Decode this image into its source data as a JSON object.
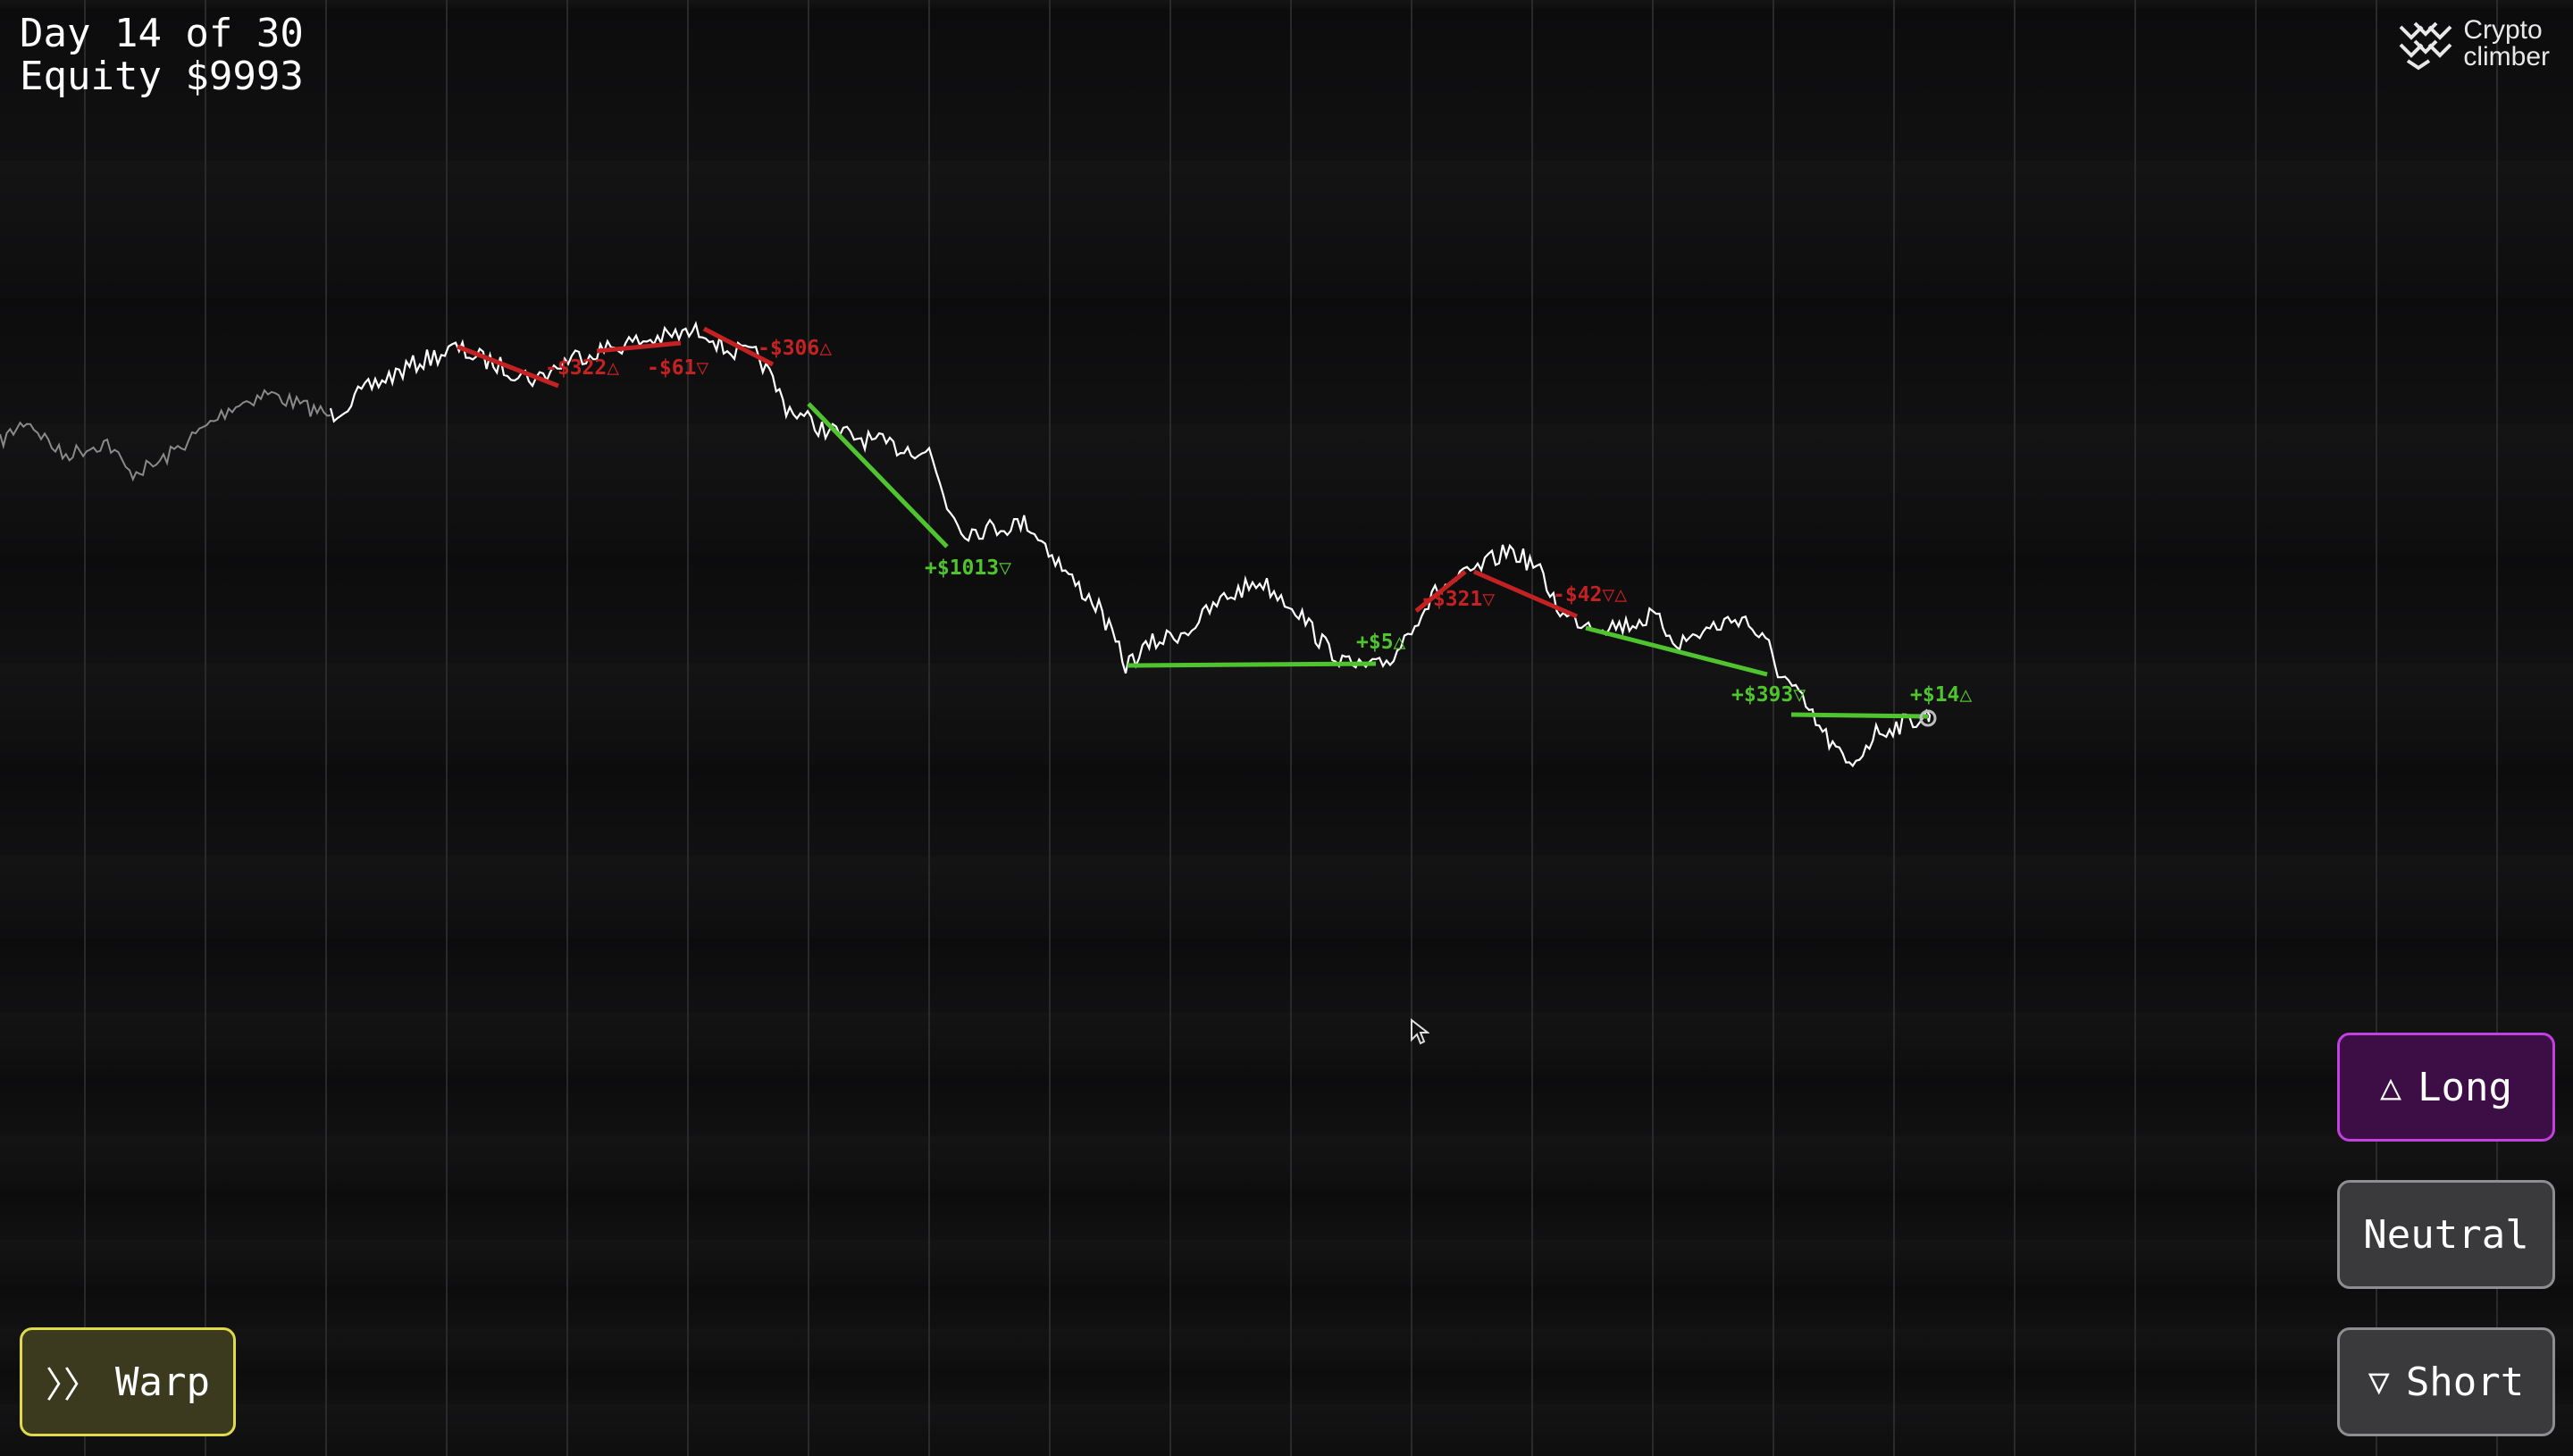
{
  "hud": {
    "day_text": "Day 14 of 30",
    "equity_text": "Equity $9993"
  },
  "logo": {
    "line1": "Crypto",
    "line2": "climber",
    "icon": "crypto-climber-logo-icon"
  },
  "buttons": {
    "long": {
      "label": "Long",
      "icon": "triangle-up-icon",
      "glyph": "△"
    },
    "neutral": {
      "label": "Neutral"
    },
    "short": {
      "label": "Short",
      "icon": "triangle-down-icon",
      "glyph": "▽"
    },
    "warp": {
      "label": "Warp",
      "icon": "double-chevron-right-icon",
      "glyph": "〉〉"
    }
  },
  "colors": {
    "profit": "#4fc42f",
    "loss": "#c42222",
    "price_line": "#ffffff",
    "history_line": "#8a8a8a",
    "long_accent": "#c23fe0",
    "warp_accent": "#e0d94a"
  },
  "chart_data": {
    "type": "line",
    "series_history_points": 60,
    "series_main_points": 300,
    "trades": [
      {
        "label": "-$322△",
        "result": "loss"
      },
      {
        "label": "-$61▽",
        "result": "loss"
      },
      {
        "label": "-$306△",
        "result": "loss"
      },
      {
        "label": "+$1013▽",
        "result": "profit"
      },
      {
        "label": "+$5△",
        "result": "profit"
      },
      {
        "label": "-$321▽",
        "result": "loss"
      },
      {
        "label": "-$42▽△",
        "result": "loss"
      },
      {
        "label": "+$393▽",
        "result": "profit"
      },
      {
        "label": "+$14△",
        "result": "profit"
      }
    ]
  }
}
